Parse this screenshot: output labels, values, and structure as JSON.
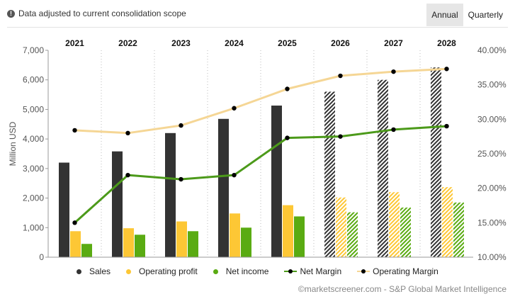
{
  "notice": {
    "icon": "info-icon",
    "text": "Data adjusted to current consolidation scope"
  },
  "tabs": [
    {
      "label": "Annual",
      "active": true
    },
    {
      "label": "Quarterly",
      "active": false
    }
  ],
  "legend": [
    {
      "label": "Sales",
      "color": "#333333",
      "symbol": "dot"
    },
    {
      "label": "Operating profit",
      "color": "#fdc735",
      "symbol": "dot"
    },
    {
      "label": "Net income",
      "color": "#5aab12",
      "symbol": "dot"
    },
    {
      "label": "Net Margin",
      "color": "#4c9a1a",
      "symbol": "line"
    },
    {
      "label": "Operating Margin",
      "color": "#f5d695",
      "symbol": "line"
    }
  ],
  "credit": "©marketscreener.com - S&P Global Market Intelligence",
  "chart_data": {
    "type": "bar",
    "categories": [
      "2021",
      "2022",
      "2023",
      "2024",
      "2025",
      "2026",
      "2027",
      "2028"
    ],
    "estimated_from": "2026",
    "ylabel": "Million USD",
    "ylim": [
      0,
      7000
    ],
    "yticks": [
      "0",
      "1,000",
      "2,000",
      "3,000",
      "4,000",
      "5,000",
      "6,000",
      "7,000"
    ],
    "y2lim": [
      10,
      40
    ],
    "y2ticks": [
      "10.00%",
      "15.00%",
      "20.00%",
      "25.00%",
      "30.00%",
      "35.00%",
      "40.00%"
    ],
    "series": [
      {
        "name": "Sales",
        "kind": "bar",
        "axis": "left",
        "color": "#333333",
        "values": [
          3200,
          3580,
          4200,
          4680,
          5130,
          5600,
          6000,
          6420
        ]
      },
      {
        "name": "Operating profit",
        "kind": "bar",
        "axis": "left",
        "color": "#fdc735",
        "values": [
          880,
          980,
          1210,
          1480,
          1760,
          2020,
          2200,
          2370
        ]
      },
      {
        "name": "Net income",
        "kind": "bar",
        "axis": "left",
        "color": "#5aab12",
        "values": [
          450,
          760,
          880,
          1000,
          1380,
          1520,
          1680,
          1850
        ]
      },
      {
        "name": "Net Margin",
        "kind": "line",
        "axis": "right",
        "color": "#4c9a1a",
        "values": [
          15.0,
          21.9,
          21.3,
          21.9,
          27.3,
          27.5,
          28.5,
          29.0
        ]
      },
      {
        "name": "Operating Margin",
        "kind": "line",
        "axis": "right",
        "color": "#f5d695",
        "values": [
          28.4,
          28.0,
          29.1,
          31.6,
          34.4,
          36.3,
          36.9,
          37.3
        ]
      }
    ]
  }
}
